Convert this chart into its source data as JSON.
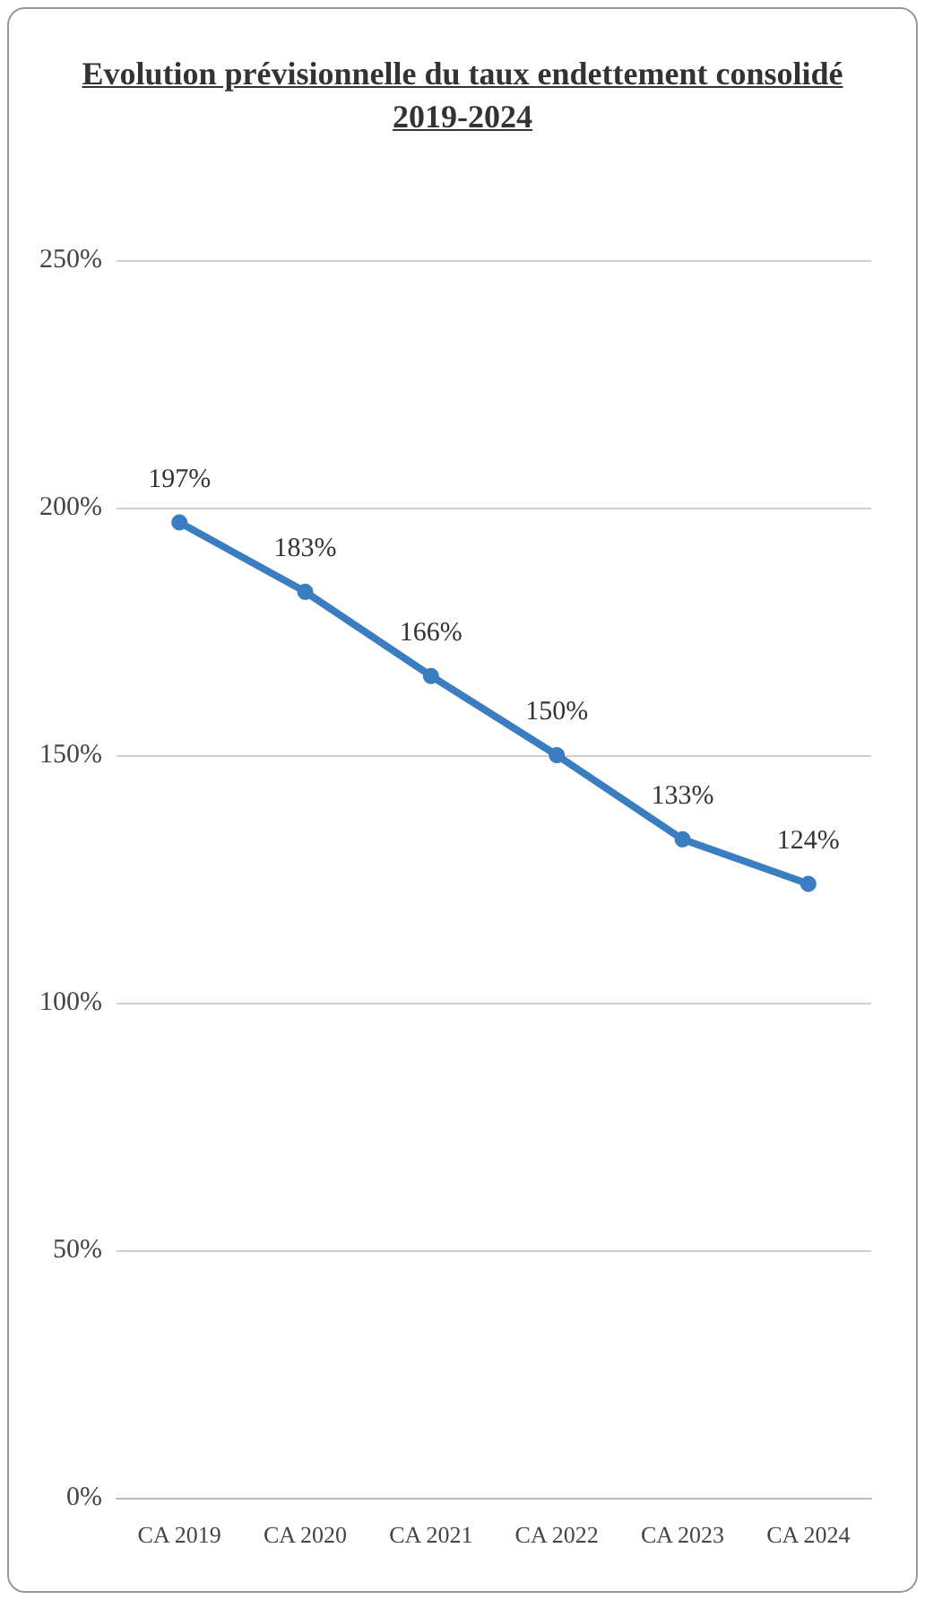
{
  "chart_data": {
    "type": "line",
    "title": "Evolution prévisionnelle du taux endettement consolidé",
    "subtitle": "2019-2024",
    "categories": [
      "CA 2019",
      "CA 2020",
      "CA 2021",
      "CA 2022",
      "CA 2023",
      "CA 2024"
    ],
    "series": [
      {
        "color": "#3a7dc0",
        "values": [
          197,
          183,
          166,
          150,
          133,
          124
        ],
        "value_labels": [
          "197%",
          "183%",
          "166%",
          "150%",
          "133%",
          "124%"
        ]
      }
    ],
    "ylim": [
      0,
      250
    ],
    "yticks": [
      {
        "value": 0,
        "label": "0%"
      },
      {
        "value": 50,
        "label": "50%"
      },
      {
        "value": 100,
        "label": "100%"
      },
      {
        "value": 150,
        "label": "150%"
      },
      {
        "value": 200,
        "label": "200%"
      },
      {
        "value": 250,
        "label": "250%"
      }
    ],
    "grid": "y",
    "marker": "circle",
    "line_style": "solid"
  }
}
